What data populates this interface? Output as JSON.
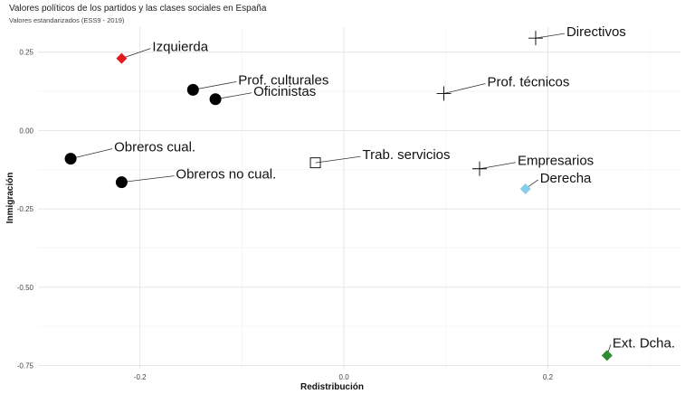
{
  "chart_data": {
    "type": "scatter",
    "title": "Valores políticos de los partidos y las clases sociales en España",
    "subtitle": "Valores estandarizados (ESS9 - 2019)",
    "xlabel": "Redistribución",
    "ylabel": "Inmigración",
    "xlim": [
      -0.3,
      0.33
    ],
    "ylim": [
      -0.76,
      0.33
    ],
    "x_ticks": [
      {
        "value": -0.2,
        "label": "-0.2"
      },
      {
        "value": 0.0,
        "label": "0.0"
      },
      {
        "value": 0.2,
        "label": "0.2"
      }
    ],
    "y_ticks": [
      {
        "value": 0.25,
        "label": "0.25"
      },
      {
        "value": 0.0,
        "label": "0.00"
      },
      {
        "value": -0.25,
        "label": "-0.25"
      },
      {
        "value": -0.5,
        "label": "-0.50"
      },
      {
        "value": -0.75,
        "label": "-0.75"
      }
    ],
    "grid": true,
    "points": [
      {
        "label": "Izquierda",
        "x": -0.218,
        "y": 0.23,
        "shape": "diamond",
        "color": "#e41a1c"
      },
      {
        "label": "Prof. culturales",
        "x": -0.148,
        "y": 0.13,
        "shape": "circle",
        "color": "#000000"
      },
      {
        "label": "Oficinistas",
        "x": -0.126,
        "y": 0.1,
        "shape": "circle",
        "color": "#000000"
      },
      {
        "label": "Obreros cual.",
        "x": -0.268,
        "y": -0.09,
        "shape": "circle",
        "color": "#000000"
      },
      {
        "label": "Obreros no cual.",
        "x": -0.218,
        "y": -0.165,
        "shape": "circle",
        "color": "#000000"
      },
      {
        "label": "Directivos",
        "x": 0.188,
        "y": 0.295,
        "shape": "plus",
        "color": "#000000"
      },
      {
        "label": "Prof. técnicos",
        "x": 0.098,
        "y": 0.118,
        "shape": "plus",
        "color": "#000000"
      },
      {
        "label": "Trab. servicios",
        "x": -0.028,
        "y": -0.103,
        "shape": "square",
        "color": "#000000"
      },
      {
        "label": "Empresarios",
        "x": 0.133,
        "y": -0.122,
        "shape": "plus",
        "color": "#000000"
      },
      {
        "label": "Derecha",
        "x": 0.178,
        "y": -0.186,
        "shape": "diamond",
        "color": "#87ceeb"
      },
      {
        "label": "Ext. Dcha.",
        "x": 0.258,
        "y": -0.718,
        "shape": "diamond",
        "color": "#2e8b2e"
      }
    ]
  }
}
